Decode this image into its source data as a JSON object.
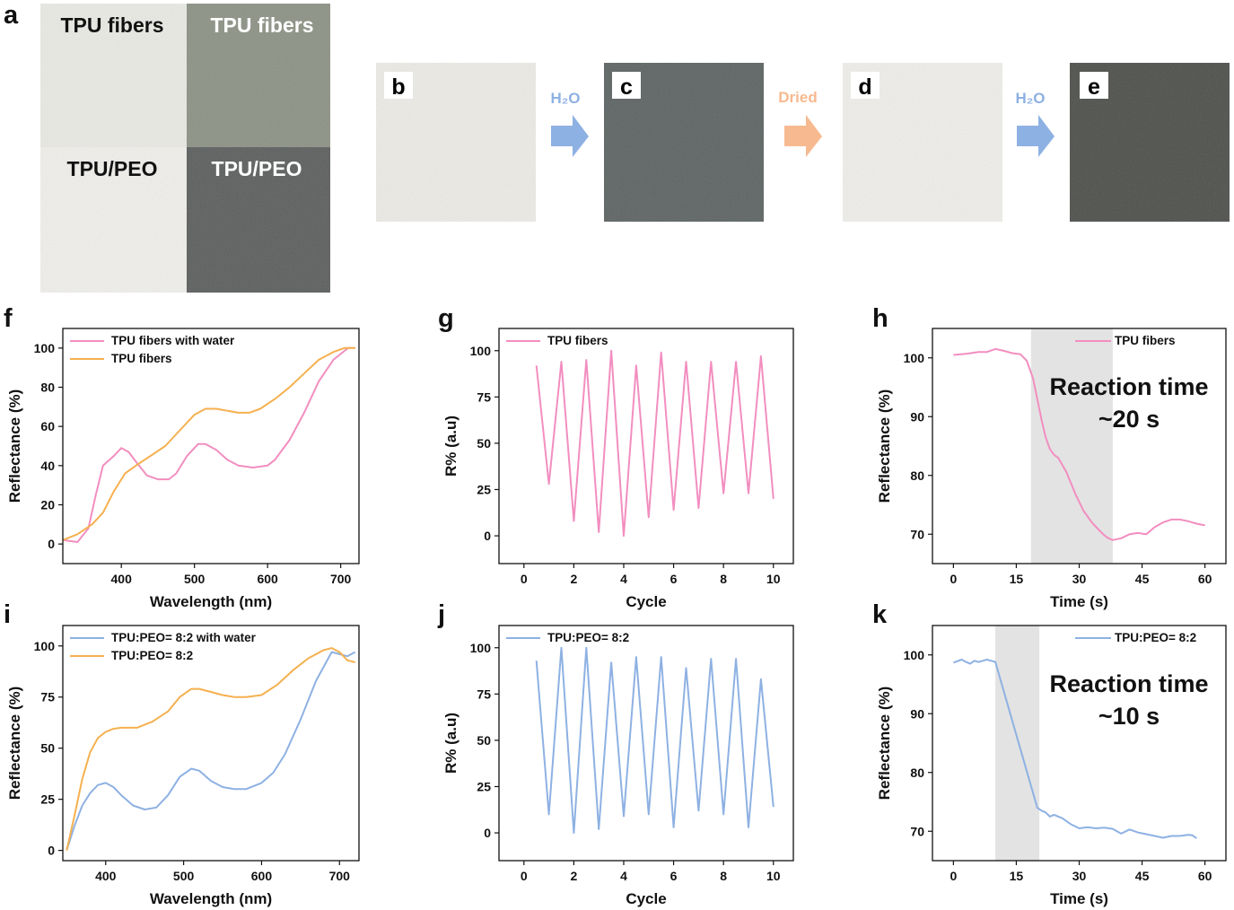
{
  "panels": {
    "a": "a",
    "b": "b",
    "c": "c",
    "d": "d",
    "e": "e",
    "f": "f",
    "g": "g",
    "h": "h",
    "i": "i",
    "j": "j",
    "k": "k"
  },
  "photos": {
    "a_top_left": "TPU fibers",
    "a_top_right": "TPU fibers",
    "a_bottom_left": "TPU/PEO",
    "a_bottom_right": "TPU/PEO",
    "arrow1": "H₂O",
    "arrow2": "Dried",
    "arrow3": "H₂O",
    "colors": {
      "light_sample": "#ecebe6",
      "wet_sample": "#5d605f",
      "grey_green_sample": "#8d9285",
      "blue_arrow": "#8eb1e3",
      "orange_arrow": "#f7b98f"
    }
  },
  "chart_data": [
    {
      "id": "f",
      "type": "line",
      "xlabel": "Wavelength (nm)",
      "ylabel": "Reflectance (%)",
      "xlim": [
        320,
        725
      ],
      "ylim": [
        -10,
        110
      ],
      "xticks": [
        400,
        500,
        600,
        700
      ],
      "yticks": [
        0,
        20,
        40,
        60,
        80,
        100
      ],
      "legend": "top-left",
      "series": [
        {
          "name": "TPU fibers with water",
          "color": "#f28ec0",
          "x": [
            320,
            340,
            355,
            365,
            375,
            390,
            400,
            410,
            420,
            435,
            450,
            465,
            475,
            490,
            505,
            515,
            530,
            545,
            560,
            580,
            600,
            610,
            630,
            650,
            670,
            690,
            700,
            710,
            720
          ],
          "y": [
            2,
            1,
            8,
            25,
            40,
            45,
            49,
            47,
            42,
            35,
            33,
            33,
            36,
            45,
            51,
            51,
            48,
            43,
            40,
            39,
            40,
            43,
            53,
            67,
            83,
            94,
            97,
            100,
            100
          ]
        },
        {
          "name": "TPU fibers",
          "color": "#f5b04f",
          "x": [
            320,
            340,
            360,
            375,
            390,
            405,
            420,
            440,
            460,
            480,
            500,
            515,
            530,
            545,
            560,
            575,
            590,
            610,
            630,
            650,
            670,
            690,
            705,
            720
          ],
          "y": [
            2,
            5,
            10,
            16,
            27,
            36,
            40,
            45,
            50,
            58,
            66,
            69,
            69,
            68,
            67,
            67,
            69,
            74,
            80,
            87,
            94,
            98,
            100,
            100
          ]
        }
      ]
    },
    {
      "id": "g",
      "type": "line",
      "xlabel": "Cycle",
      "ylabel": "R% (a.u)",
      "xlim": [
        -1,
        10.8
      ],
      "ylim": [
        -15,
        112
      ],
      "xticks": [
        0,
        2,
        4,
        6,
        8,
        10
      ],
      "yticks": [
        0,
        25,
        50,
        75,
        100
      ],
      "legend": "top-left",
      "series": [
        {
          "name": "TPU fibers",
          "color": "#f28ec0",
          "x": [
            0.5,
            1,
            1.5,
            2,
            2.5,
            3,
            3.5,
            4,
            4.5,
            5,
            5.5,
            6,
            6.5,
            7,
            7.5,
            8,
            8.5,
            9,
            9.5,
            10
          ],
          "y": [
            92,
            28,
            94,
            8,
            95,
            2,
            100,
            0,
            92,
            10,
            99,
            14,
            94,
            15,
            94,
            23,
            94,
            23,
            97,
            20
          ]
        }
      ]
    },
    {
      "id": "h",
      "type": "line",
      "xlabel": "Time (s)",
      "ylabel": "Reflectance (%)",
      "xlim": [
        -5,
        65
      ],
      "ylim": [
        65,
        105
      ],
      "xticks": [
        0,
        15,
        30,
        45,
        60
      ],
      "yticks": [
        70,
        80,
        90,
        100
      ],
      "legend": "top-right",
      "annotation": "Reaction time ~20 s",
      "shade": [
        18.5,
        38
      ],
      "series": [
        {
          "name": "TPU fibers",
          "color": "#f28ec0",
          "x": [
            0,
            3,
            6,
            8,
            10,
            12,
            14,
            16,
            17.5,
            19,
            20,
            21,
            22,
            23,
            24,
            25,
            27,
            29,
            31,
            33,
            35,
            36,
            37,
            38,
            40,
            42,
            44,
            46,
            48,
            50,
            52,
            54,
            56,
            58,
            60
          ],
          "y": [
            100.5,
            100.7,
            101,
            101,
            101.5,
            101.2,
            100.8,
            100.6,
            99.5,
            96.5,
            93,
            89.5,
            86.5,
            84.5,
            83.5,
            83,
            80.5,
            77,
            74,
            72,
            70.5,
            69.8,
            69.3,
            69,
            69.3,
            70,
            70.2,
            70,
            71.2,
            72,
            72.5,
            72.5,
            72.2,
            71.8,
            71.5
          ]
        }
      ]
    },
    {
      "id": "i",
      "type": "line",
      "xlabel": "Wavelength (nm)",
      "ylabel": "Reflectance (%)",
      "xlim": [
        345,
        725
      ],
      "ylim": [
        -5,
        110
      ],
      "xticks": [
        400,
        500,
        600,
        700
      ],
      "yticks": [
        0,
        25,
        50,
        75,
        100
      ],
      "legend": "top-left",
      "series": [
        {
          "name": "TPU:PEO= 8:2 with water",
          "color": "#8eb1e3",
          "x": [
            350,
            360,
            370,
            380,
            390,
            400,
            410,
            420,
            435,
            450,
            465,
            480,
            495,
            510,
            520,
            535,
            550,
            565,
            580,
            600,
            615,
            630,
            650,
            670,
            690,
            700,
            710,
            720
          ],
          "y": [
            0,
            12,
            22,
            28,
            32,
            33,
            31,
            27,
            22,
            20,
            21,
            27,
            36,
            40,
            39,
            34,
            31,
            30,
            30,
            33,
            38,
            47,
            64,
            83,
            97,
            96,
            95,
            97
          ]
        },
        {
          "name": "TPU:PEO= 8:2",
          "color": "#f5b04f",
          "x": [
            350,
            360,
            370,
            380,
            390,
            400,
            410,
            420,
            440,
            460,
            480,
            495,
            510,
            520,
            535,
            550,
            565,
            580,
            600,
            620,
            640,
            660,
            680,
            690,
            700,
            710,
            720
          ],
          "y": [
            0,
            17,
            35,
            48,
            55,
            58,
            59.5,
            60,
            60,
            63,
            68,
            75,
            79,
            79,
            77.5,
            76,
            75,
            75,
            76,
            81,
            88,
            94,
            98,
            99,
            97,
            93,
            92
          ]
        }
      ]
    },
    {
      "id": "j",
      "type": "line",
      "xlabel": "Cycle",
      "ylabel": "R% (a.u)",
      "xlim": [
        -1,
        10.8
      ],
      "ylim": [
        -15,
        112
      ],
      "xticks": [
        0,
        2,
        4,
        6,
        8,
        10
      ],
      "yticks": [
        0,
        25,
        50,
        75,
        100
      ],
      "legend": "top-left",
      "series": [
        {
          "name": "TPU:PEO= 8:2",
          "color": "#8eb1e3",
          "x": [
            0.5,
            1,
            1.5,
            2,
            2.5,
            3,
            3.5,
            4,
            4.5,
            5,
            5.5,
            6,
            6.5,
            7,
            7.5,
            8,
            8.5,
            9,
            9.5,
            10
          ],
          "y": [
            93,
            10,
            100,
            0,
            100,
            2,
            92,
            9,
            95,
            10,
            95,
            3,
            89,
            12,
            94,
            10,
            94,
            3,
            83,
            14
          ]
        }
      ]
    },
    {
      "id": "k",
      "type": "line",
      "xlabel": "Time (s)",
      "ylabel": "Reflectance (%)",
      "xlim": [
        -5,
        65
      ],
      "ylim": [
        65,
        105
      ],
      "xticks": [
        0,
        15,
        30,
        45,
        60
      ],
      "yticks": [
        70,
        80,
        90,
        100
      ],
      "legend": "top-right",
      "annotation": "Reaction time ~10 s",
      "shade": [
        10,
        20.5
      ],
      "series": [
        {
          "name": "TPU:PEO= 8:2",
          "color": "#8eb1e3",
          "x": [
            0,
            2,
            3,
            4,
            5,
            6,
            7,
            8,
            9,
            10,
            20,
            21,
            22,
            23,
            24,
            26,
            28,
            30,
            32,
            34,
            36,
            38,
            40,
            42,
            44,
            46,
            48,
            50,
            52,
            54,
            56,
            57,
            58
          ],
          "y": [
            98.7,
            99.2,
            98.8,
            98.5,
            99,
            98.8,
            99,
            99.2,
            99,
            98.8,
            74,
            73.5,
            73.2,
            72.5,
            72.8,
            72.2,
            71.2,
            70.5,
            70.7,
            70.5,
            70.6,
            70.4,
            69.6,
            70.3,
            69.8,
            69.5,
            69.2,
            68.9,
            69.2,
            69.2,
            69.4,
            69.3,
            68.8
          ]
        }
      ]
    }
  ]
}
